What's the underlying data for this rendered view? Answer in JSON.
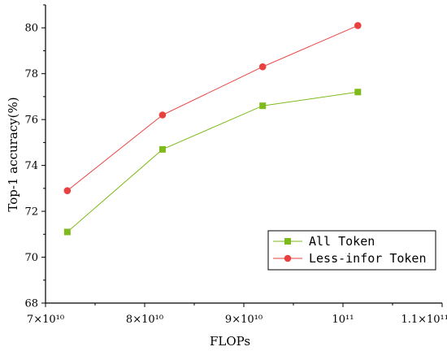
{
  "chart_data": {
    "type": "line",
    "xlabel": "FLOPs",
    "ylabel": "Top-1 accuracy(%)",
    "xlim": [
      70000000000,
      110000000000
    ],
    "ylim": [
      68,
      81
    ],
    "x_ticks": [
      {
        "value": 70000000000,
        "label": "7×10¹⁰"
      },
      {
        "value": 80000000000,
        "label": "8×10¹⁰"
      },
      {
        "value": 90000000000,
        "label": "9×10¹⁰"
      },
      {
        "value": 100000000000,
        "label": "10¹¹"
      },
      {
        "value": 110000000000,
        "label": "1.1×10¹¹"
      }
    ],
    "y_ticks": [
      68,
      70,
      72,
      74,
      76,
      78,
      80
    ],
    "legend_position": "bottom-right",
    "series": [
      {
        "name": "All Token",
        "marker": "square",
        "color": "#7fba1c",
        "x": [
          72200000000,
          81800000000,
          91900000000,
          101500000000
        ],
        "y": [
          71.1,
          74.7,
          76.6,
          77.2
        ]
      },
      {
        "name": "Less-infor Token",
        "marker": "circle",
        "color": "#e8413f",
        "x": [
          72200000000,
          81800000000,
          91900000000,
          101500000000
        ],
        "y": [
          72.9,
          76.2,
          78.3,
          80.1
        ]
      }
    ]
  }
}
